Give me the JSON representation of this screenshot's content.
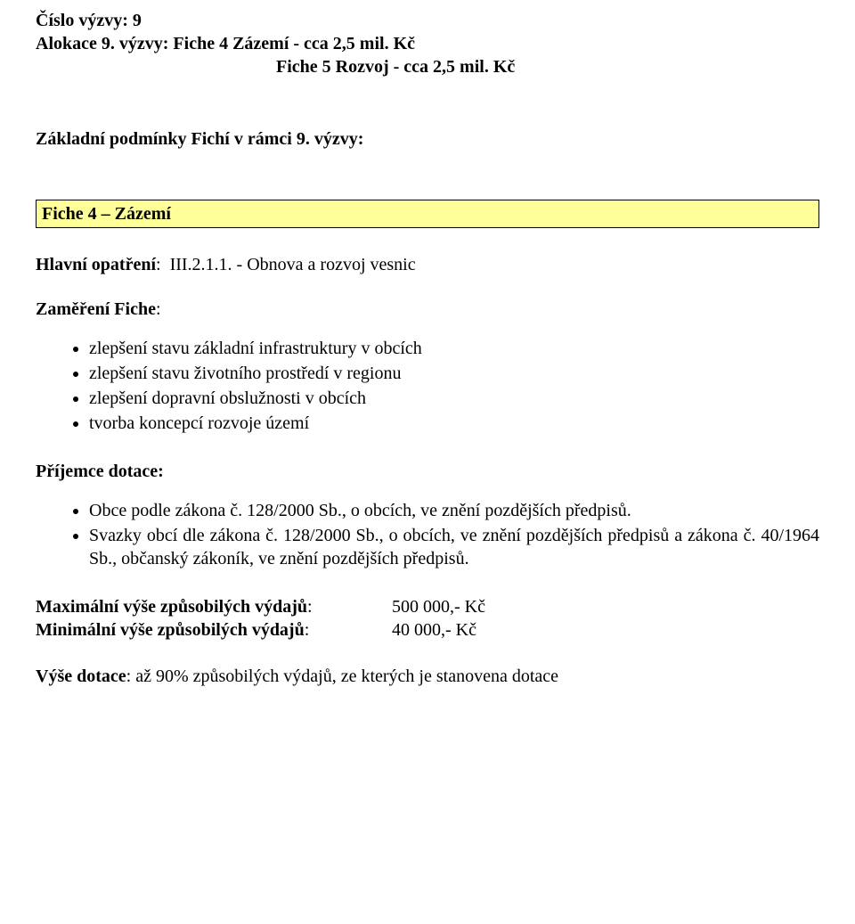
{
  "header": {
    "line1_label": "Číslo výzvy:",
    "line1_value": "9",
    "line2_label": "Alokace 9. výzvy:",
    "line2_value": "Fiche 4 Zázemí  - cca  2,5 mil. Kč",
    "line3_value": "Fiche 5 Rozvoj - cca  2,5 mil. Kč"
  },
  "conditions_heading": "Základní podmínky Fichí v rámci 9. výzvy:",
  "fiche4": {
    "band": "Fiche 4 – Zázemí",
    "main_measure_label": "Hlavní opatření",
    "main_measure_value": "III.2.1.1. - Obnova a rozvoj vesnic",
    "focus_label": "Zaměření Fiche",
    "focus_items": [
      "zlepšení stavu základní infrastruktury v obcích",
      "zlepšení stavu životního prostředí v regionu",
      "zlepšení dopravní obslužnosti v obcích",
      "tvorba koncepcí rozvoje území"
    ],
    "recipient_label": "Příjemce dotace:",
    "recipient_items": [
      "Obce podle zákona č. 128/2000 Sb., o obcích, ve znění pozdějších předpisů.",
      "Svazky obcí dle zákona č. 128/2000 Sb., o obcích, ve znění pozdějších předpisů a zákona č. 40/1964 Sb., občanský zákoník, ve znění pozdějších předpisů."
    ],
    "max_label": "Maximální výše způsobilých výdajů",
    "max_value": "500 000,- Kč",
    "min_label": "Minimální výše způsobilých výdajů",
    "min_value": "40 000,- Kč",
    "rate_label": "Výše dotace",
    "rate_value": "až 90% způsobilých výdajů, ze kterých je stanovena dotace"
  },
  "colors": {
    "band_bg": "#ffff99",
    "band_border": "#000000",
    "text": "#000000",
    "page_bg": "#ffffff"
  }
}
